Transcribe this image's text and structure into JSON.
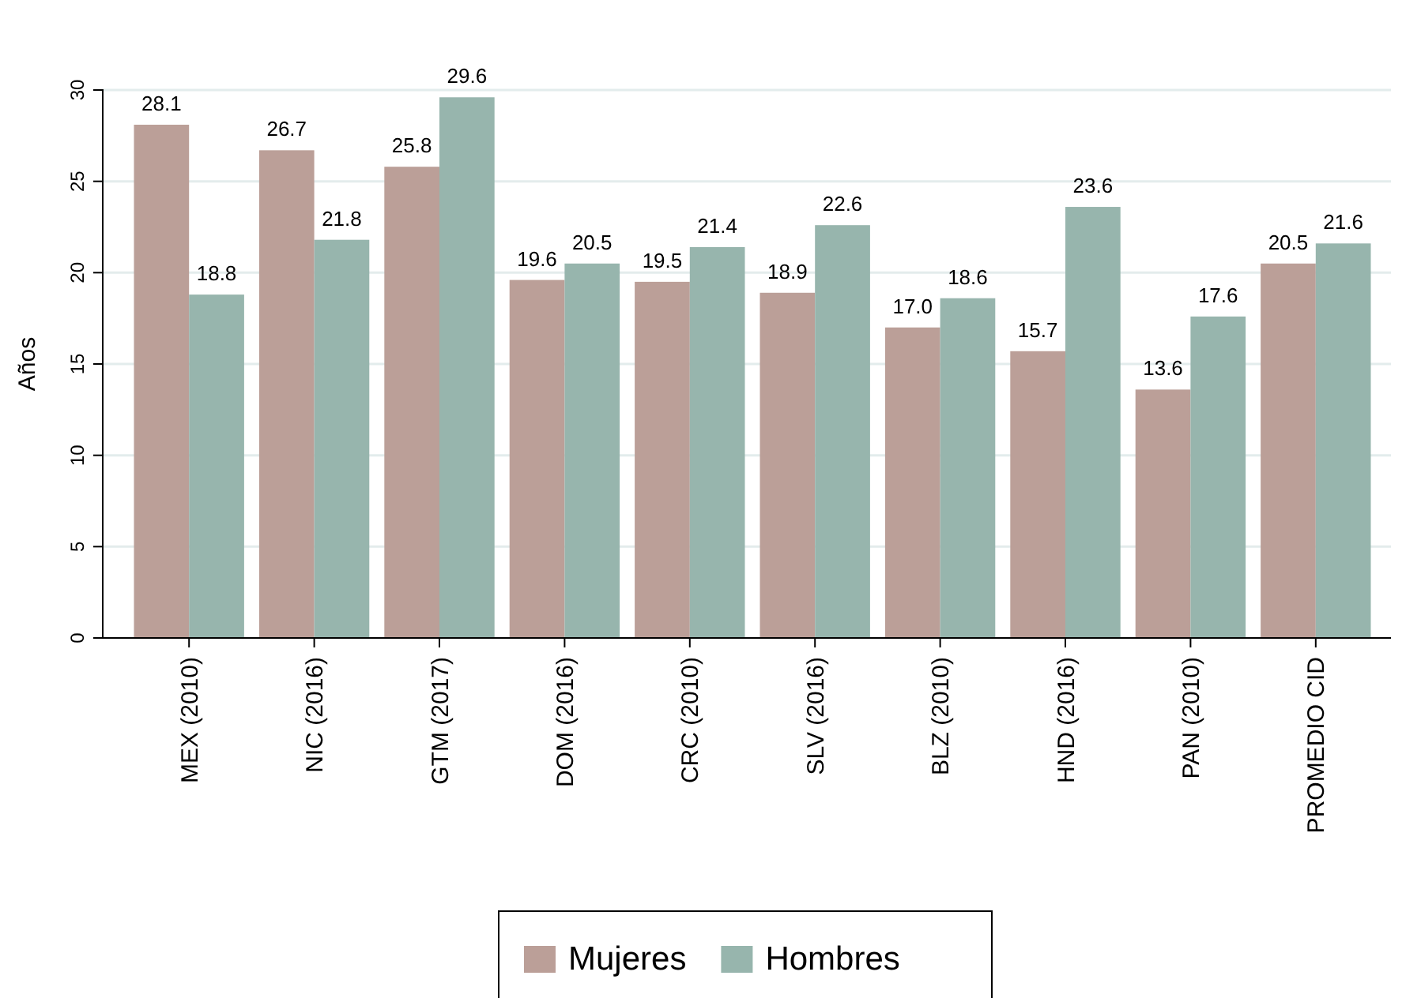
{
  "chart_data": {
    "type": "bar",
    "ylabel": "Años",
    "categories": [
      "MEX (2010)",
      "NIC (2016)",
      "GTM (2017)",
      "DOM (2016)",
      "CRC (2010)",
      "SLV (2016)",
      "BLZ (2010)",
      "HND (2016)",
      "PAN (2010)",
      "PROMEDIO CID"
    ],
    "series": [
      {
        "name": "Mujeres",
        "color": "#bb9f98",
        "values": [
          28.1,
          26.7,
          25.8,
          19.6,
          19.5,
          18.9,
          17.0,
          15.7,
          13.6,
          20.5
        ]
      },
      {
        "name": "Hombres",
        "color": "#97b5ad",
        "values": [
          18.8,
          21.8,
          29.6,
          20.5,
          21.4,
          22.6,
          18.6,
          23.6,
          17.6,
          21.6
        ]
      }
    ],
    "value_labels": [
      [
        "28.1",
        "26.7",
        "25.8",
        "19.6",
        "19.5",
        "18.9",
        "17.0",
        "15.7",
        "13.6",
        "20.5"
      ],
      [
        "18.8",
        "21.8",
        "29.6",
        "20.5",
        "21.4",
        "22.6",
        "18.6",
        "23.6",
        "17.6",
        "21.6"
      ]
    ],
    "ylim": [
      0,
      30
    ],
    "yticks": [
      0,
      5,
      10,
      15,
      20,
      25,
      30
    ],
    "grid": "y",
    "legend": "bottom"
  }
}
